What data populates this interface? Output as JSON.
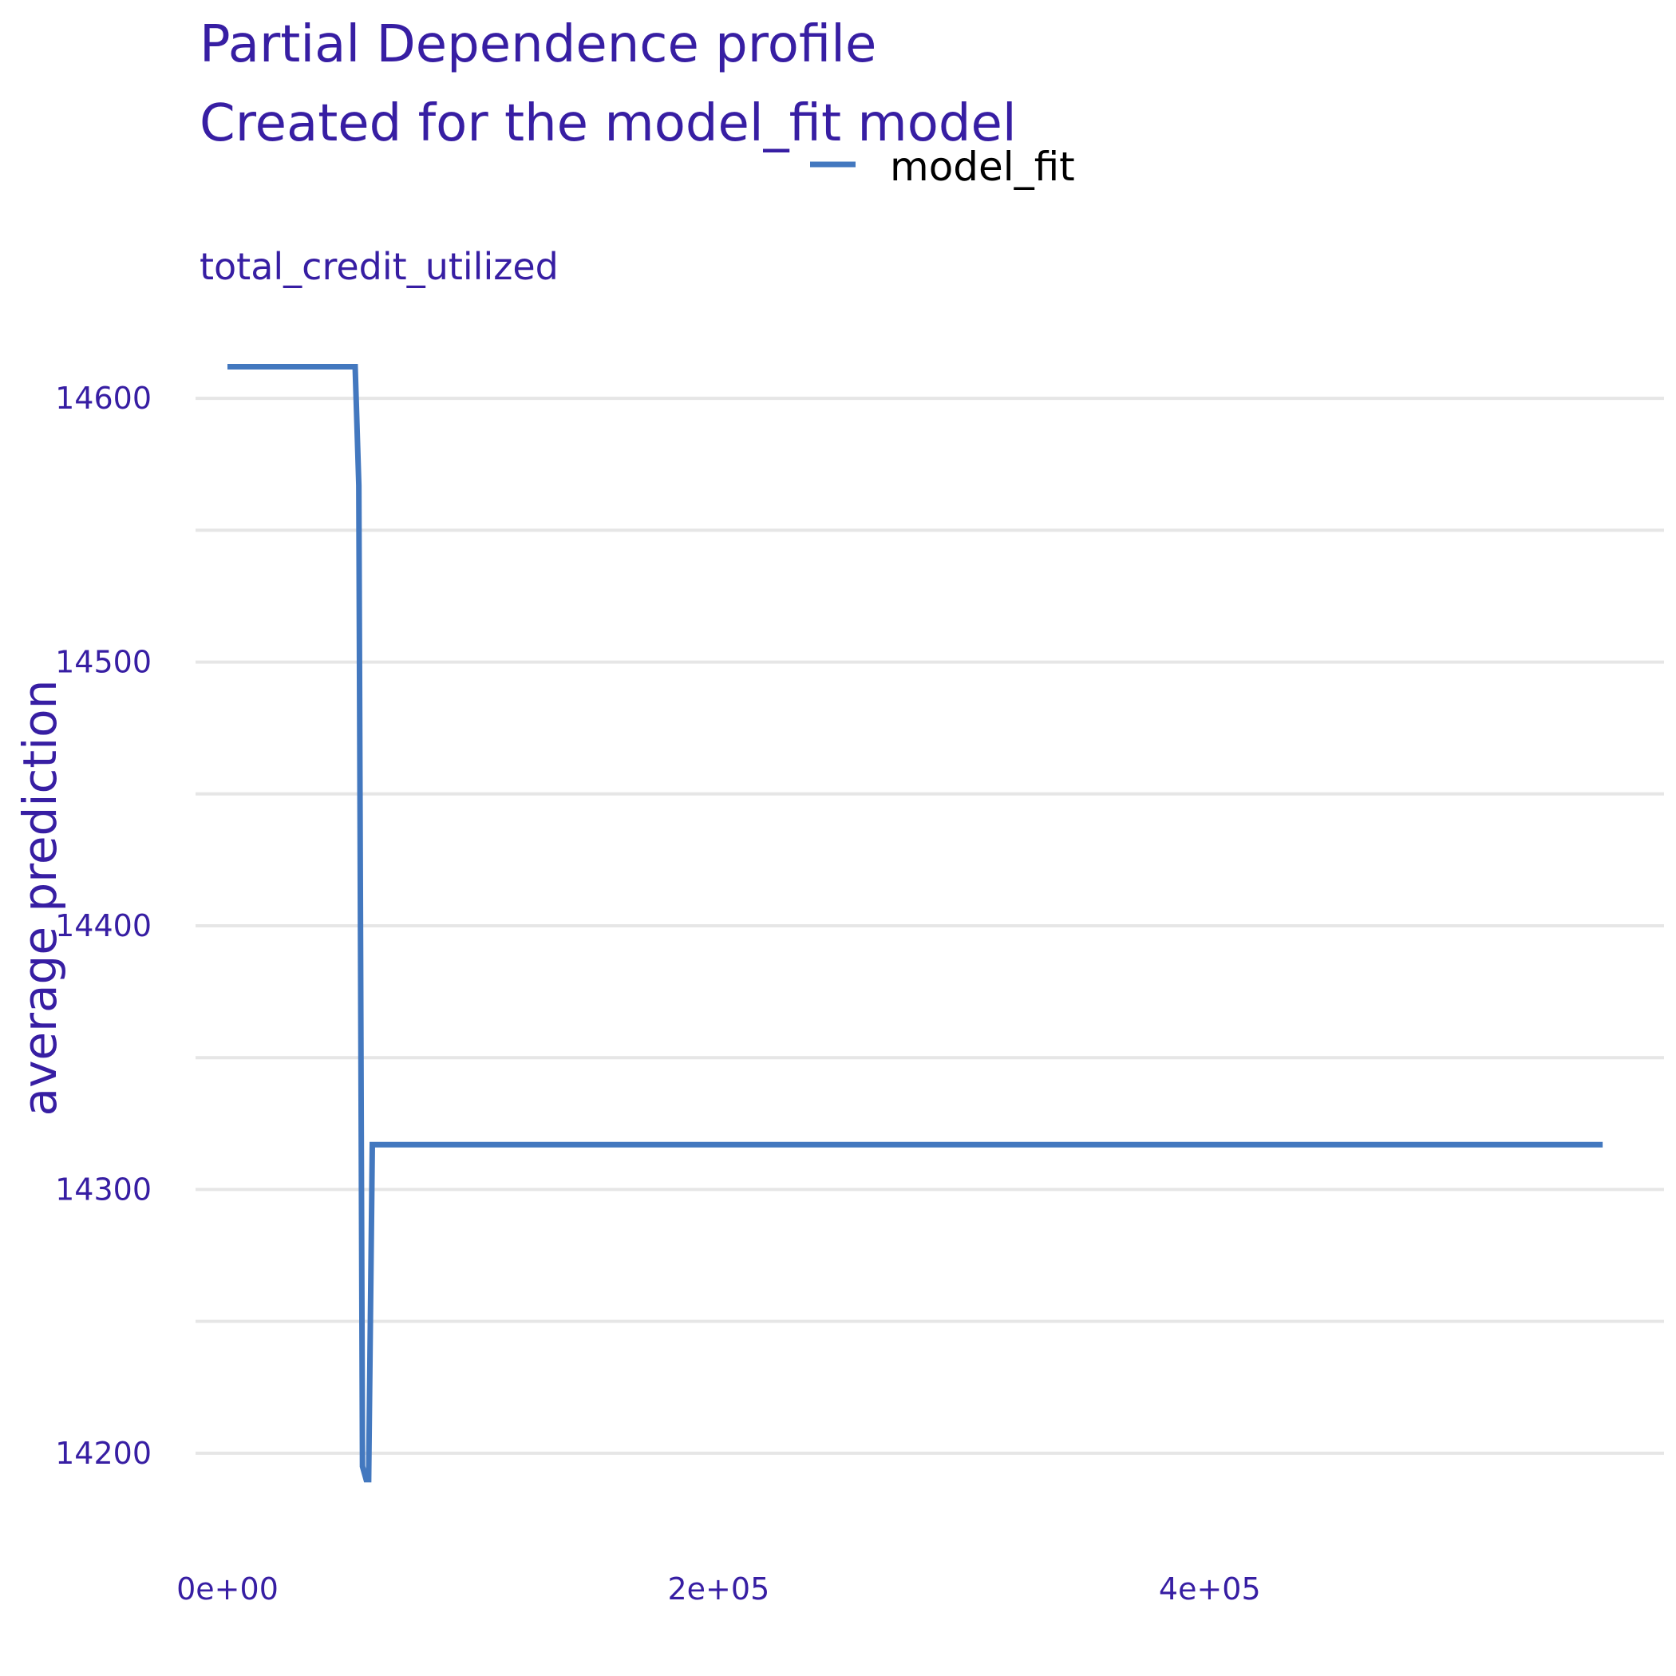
{
  "chart_data": {
    "type": "line",
    "title": "Partial Dependence profile",
    "subtitle": "Created for the model_fit model",
    "facet_label": "total_credit_utilized",
    "xlabel": "",
    "ylabel": "average prediction",
    "xlim": [
      -13000,
      585000
    ],
    "ylim": [
      14170,
      14630
    ],
    "x_ticks": [
      0,
      200000,
      400000
    ],
    "x_tick_labels": [
      "0e+00",
      "2e+05",
      "4e+05"
    ],
    "y_ticks": [
      14200,
      14300,
      14400,
      14500,
      14600
    ],
    "y_tick_labels": [
      "14200",
      "14300",
      "14400",
      "14500",
      "14600"
    ],
    "y_minor_ticks": [
      14250,
      14350,
      14450,
      14550
    ],
    "grid": true,
    "legend_position": "top",
    "series": [
      {
        "name": "model_fit",
        "color": "#4378bf",
        "x": [
          0,
          52000,
          53500,
          55000,
          56500,
          57500,
          59000,
          560000
        ],
        "y": [
          14612,
          14612,
          14567,
          14195,
          14190,
          14190,
          14317,
          14317
        ]
      }
    ]
  }
}
